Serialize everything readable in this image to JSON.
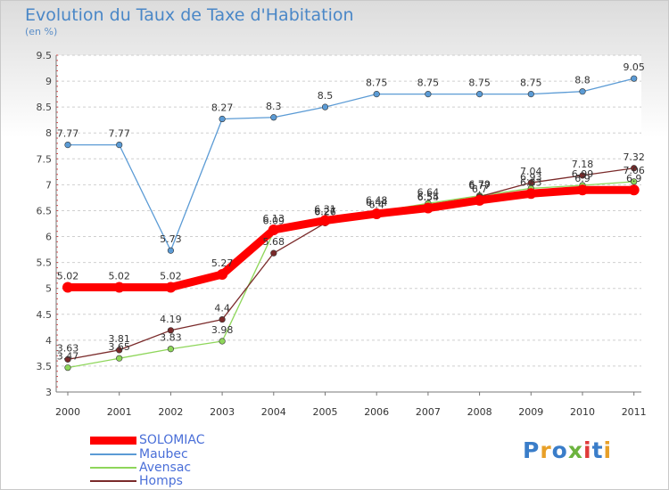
{
  "title": "Evolution du Taux de Taxe d'Habitation",
  "subtitle": "(en %)",
  "logo": {
    "text": "Proxiti",
    "colors": [
      "#3a7dc9",
      "#e8a028",
      "#3a7dc9",
      "#6cb33e",
      "#e03a3a",
      "#3a7dc9",
      "#e8a028"
    ]
  },
  "chart_data": {
    "type": "line",
    "x": [
      "2000",
      "2001",
      "2002",
      "2003",
      "2004",
      "2005",
      "2006",
      "2007",
      "2008",
      "2009",
      "2010",
      "2011"
    ],
    "ylim": [
      3,
      9.5
    ],
    "yticks": [
      "3",
      "3.5",
      "4",
      "4.5",
      "5",
      "5.5",
      "6",
      "6.5",
      "7",
      "7.5",
      "8",
      "8.5",
      "9",
      "9.5"
    ],
    "grid": "horizontal-dashed",
    "legend_position": "bottom-left",
    "series": [
      {
        "name": "SOLOMIAC",
        "color": "#ff0000",
        "values": [
          5.02,
          5.02,
          5.02,
          5.27,
          6.13,
          6.31,
          6.44,
          6.55,
          6.7,
          6.83,
          6.9,
          6.9
        ],
        "labels": [
          "5.02",
          "5.02",
          "5.02",
          "5.27",
          "6.13",
          "6.31",
          "6.44",
          "6.55",
          "6.7",
          "6.83",
          "6.9",
          "6.9"
        ]
      },
      {
        "name": "Maubec",
        "color": "#5b9bd5",
        "values": [
          7.77,
          7.77,
          5.73,
          8.27,
          8.3,
          8.5,
          8.75,
          8.75,
          8.75,
          8.75,
          8.8,
          9.05
        ],
        "labels": [
          "7.77",
          "7.77",
          "5.73",
          "8.27",
          "8.3",
          "8.5",
          "8.75",
          "8.75",
          "8.75",
          "8.75",
          "8.8",
          "9.05"
        ]
      },
      {
        "name": "Avensac",
        "color": "#8ed65a",
        "values": [
          3.47,
          3.65,
          3.83,
          3.98,
          6.09,
          6.27,
          6.48,
          6.64,
          6.79,
          6.93,
          6.99,
          7.06
        ],
        "labels": [
          "3.47",
          "3.65",
          "3.83",
          "3.98",
          "6.09",
          "6.27",
          "6.48",
          "6.64",
          "6.79",
          "6.93",
          "6.99",
          "7.06"
        ]
      },
      {
        "name": "Homps",
        "color": "#7a2a2a",
        "values": [
          3.63,
          3.81,
          4.19,
          4.4,
          5.68,
          6.26,
          6.4,
          6.54,
          6.77,
          7.04,
          7.18,
          7.32
        ],
        "labels": [
          "3.63",
          "3.81",
          "4.19",
          "4.4",
          "5.68",
          "6.26",
          "6.4",
          "6.54",
          "6.77",
          "7.04",
          "7.18",
          "7.32"
        ]
      }
    ]
  }
}
